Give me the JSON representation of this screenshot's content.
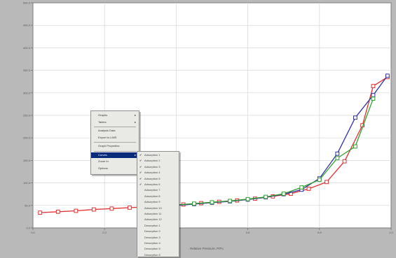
{
  "chart_data": {
    "type": "line",
    "xlabel": "Relative Pressure, P/Po",
    "x_ticks": [
      "0.0",
      "0.2",
      "0.4",
      "0.6",
      "0.8",
      "1.0"
    ],
    "y_ticks": [
      "0.0",
      "50.0",
      "100.0",
      "150.0",
      "200.0",
      "250.0",
      "300.0",
      "350.0",
      "400.0",
      "450.0",
      "500.0"
    ],
    "xlim": [
      0,
      1.0
    ],
    "ylim": [
      0,
      500
    ],
    "grid": true,
    "series": [
      {
        "color": "#e03030",
        "x": [
          0.02,
          0.07,
          0.12,
          0.17,
          0.22,
          0.27,
          0.32,
          0.37,
          0.42,
          0.47,
          0.52,
          0.57,
          0.62,
          0.67,
          0.72,
          0.77,
          0.82,
          0.87,
          0.92,
          0.95,
          0.99
        ],
        "y": [
          34,
          36,
          38,
          41,
          43,
          45,
          47,
          50,
          52,
          55,
          58,
          61,
          65,
          70,
          76,
          87,
          102,
          148,
          228,
          315,
          335
        ]
      },
      {
        "color": "#3030a0",
        "x": [
          0.4,
          0.45,
          0.5,
          0.55,
          0.6,
          0.65,
          0.7,
          0.75,
          0.8,
          0.85,
          0.9,
          0.95,
          0.99
        ],
        "y": [
          50,
          53,
          56,
          59,
          63,
          68,
          75,
          85,
          110,
          165,
          245,
          295,
          338
        ]
      },
      {
        "color": "#30a030",
        "x": [
          0.4,
          0.45,
          0.5,
          0.55,
          0.6,
          0.65,
          0.7,
          0.75,
          0.8,
          0.85,
          0.9,
          0.95
        ],
        "y": [
          51,
          54,
          57,
          60,
          64,
          69,
          76,
          90,
          107,
          155,
          181,
          287
        ]
      }
    ]
  },
  "context_menu": {
    "items": [
      {
        "label": "Graphs",
        "arrow": "▸"
      },
      {
        "label": "Tables",
        "arrow": "▸"
      },
      {
        "label": "Analysis Data",
        "arrow": ""
      },
      {
        "label": "Export to LIMS",
        "arrow": ""
      },
      {
        "label": "Graph Properties",
        "arrow": ""
      },
      {
        "label": "Curves",
        "arrow": "▸"
      },
      {
        "label": "Zoom In",
        "arrow": ""
      },
      {
        "label": "Options",
        "arrow": ""
      }
    ]
  },
  "submenu": {
    "items": [
      {
        "label": "Adsorption 1",
        "check": "✔"
      },
      {
        "label": "Adsorption 2",
        "check": "✔"
      },
      {
        "label": "Adsorption 3",
        "check": "✔"
      },
      {
        "label": "Adsorption 4",
        "check": "✔"
      },
      {
        "label": "Adsorption 5",
        "check": "✔"
      },
      {
        "label": "Adsorption 6",
        "check": "✔"
      },
      {
        "label": "Adsorption 7",
        "check": ""
      },
      {
        "label": "Adsorption 8",
        "check": ""
      },
      {
        "label": "Adsorption 9",
        "check": ""
      },
      {
        "label": "Adsorption 10",
        "check": ""
      },
      {
        "label": "Adsorption 11",
        "check": ""
      },
      {
        "label": "Adsorption 12",
        "check": ""
      },
      {
        "label": "Desorption 1",
        "check": ""
      },
      {
        "label": "Desorption 2",
        "check": ""
      },
      {
        "label": "Desorption 3",
        "check": ""
      },
      {
        "label": "Desorption 4",
        "check": ""
      },
      {
        "label": "Desorption 5",
        "check": ""
      },
      {
        "label": "Desorption 6",
        "check": ""
      }
    ]
  }
}
